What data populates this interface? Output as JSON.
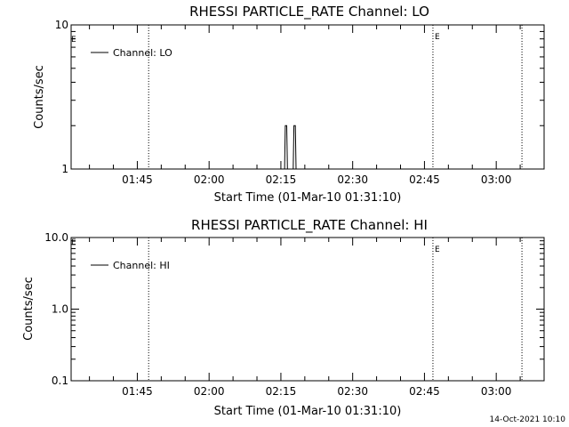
{
  "colors": {
    "background": "#ffffff",
    "foreground": "#000000"
  },
  "footer": {
    "timestamp": "14-Oct-2021 10:10"
  },
  "chart_data": [
    {
      "type": "line",
      "title": "RHESSI PARTICLE_RATE Channel: LO",
      "xlabel": "Start Time (01-Mar-10 01:31:10)",
      "ylabel": "Counts/sec",
      "x_unit": "minutes since 01:31:10",
      "xlim": [
        0,
        98.83
      ],
      "ylim": [
        1,
        10
      ],
      "yscale": "log",
      "x_ticks": [
        {
          "x": 13.83,
          "label": "01:45"
        },
        {
          "x": 28.83,
          "label": "02:00"
        },
        {
          "x": 43.83,
          "label": "02:15"
        },
        {
          "x": 58.83,
          "label": "02:30"
        },
        {
          "x": 73.83,
          "label": "02:45"
        },
        {
          "x": 88.83,
          "label": "03:00"
        }
      ],
      "y_ticks": [
        {
          "y": 10,
          "label": "10"
        },
        {
          "y": 1,
          "label": "1"
        }
      ],
      "series": [
        {
          "name": "Channel: LO",
          "x": [
            0,
            44.6,
            44.75,
            44.9,
            45.05,
            45.2,
            46.4,
            46.55,
            46.7,
            46.85,
            47.0,
            98.83
          ],
          "y": [
            1,
            1,
            2,
            2,
            2,
            1,
            1,
            2,
            2,
            2,
            1,
            1
          ]
        }
      ],
      "vlines": [
        {
          "x": 16.2,
          "label": ""
        },
        {
          "x": 75.6,
          "label": "E"
        },
        {
          "x": 94.2,
          "label": ""
        }
      ],
      "corner_marker": "E",
      "legend": "top-left",
      "grid": false
    },
    {
      "type": "line",
      "title": "RHESSI PARTICLE_RATE Channel: HI",
      "xlabel": "Start Time (01-Mar-10 01:31:10)",
      "ylabel": "Counts/sec",
      "x_unit": "minutes since 01:31:10",
      "xlim": [
        0,
        98.83
      ],
      "ylim": [
        0.1,
        10
      ],
      "yscale": "log",
      "x_ticks": [
        {
          "x": 13.83,
          "label": "01:45"
        },
        {
          "x": 28.83,
          "label": "02:00"
        },
        {
          "x": 43.83,
          "label": "02:15"
        },
        {
          "x": 58.83,
          "label": "02:30"
        },
        {
          "x": 73.83,
          "label": "02:45"
        },
        {
          "x": 88.83,
          "label": "03:00"
        }
      ],
      "y_ticks": [
        {
          "y": 10,
          "label": "10.0"
        },
        {
          "y": 1,
          "label": "1.0"
        },
        {
          "y": 0.1,
          "label": "0.1"
        }
      ],
      "series": [
        {
          "name": "Channel: HI",
          "x": [],
          "y": []
        }
      ],
      "vlines": [
        {
          "x": 16.2,
          "label": ""
        },
        {
          "x": 75.6,
          "label": "E"
        },
        {
          "x": 94.2,
          "label": ""
        }
      ],
      "corner_marker": "E",
      "legend": "top-left",
      "grid": false
    }
  ]
}
